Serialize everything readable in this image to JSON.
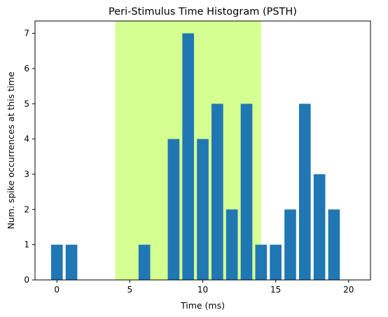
{
  "chart_data": {
    "type": "bar",
    "title": "Peri-Stimulus Time Histogram (PSTH)",
    "xlabel": "Time (ms)",
    "ylabel": "Num. spike occurrences at this time",
    "x": [
      0,
      1,
      6,
      8,
      9,
      10,
      11,
      12,
      13,
      14,
      15,
      16,
      17,
      18,
      19
    ],
    "values": [
      1,
      1,
      1,
      4,
      7,
      4,
      5,
      2,
      5,
      1,
      1,
      2,
      5,
      3,
      2
    ],
    "xlim": [
      -1.5,
      21.5
    ],
    "ylim": [
      0,
      7.35
    ],
    "xticks": [
      0,
      5,
      10,
      15,
      20
    ],
    "yticks": [
      0,
      1,
      2,
      3,
      4,
      5,
      6,
      7
    ],
    "highlight_span": {
      "x_start": 4,
      "x_end": 14,
      "color": "#d5ff91"
    },
    "bar_width": 0.8,
    "bar_color": "#1f77b4",
    "grid": false
  }
}
